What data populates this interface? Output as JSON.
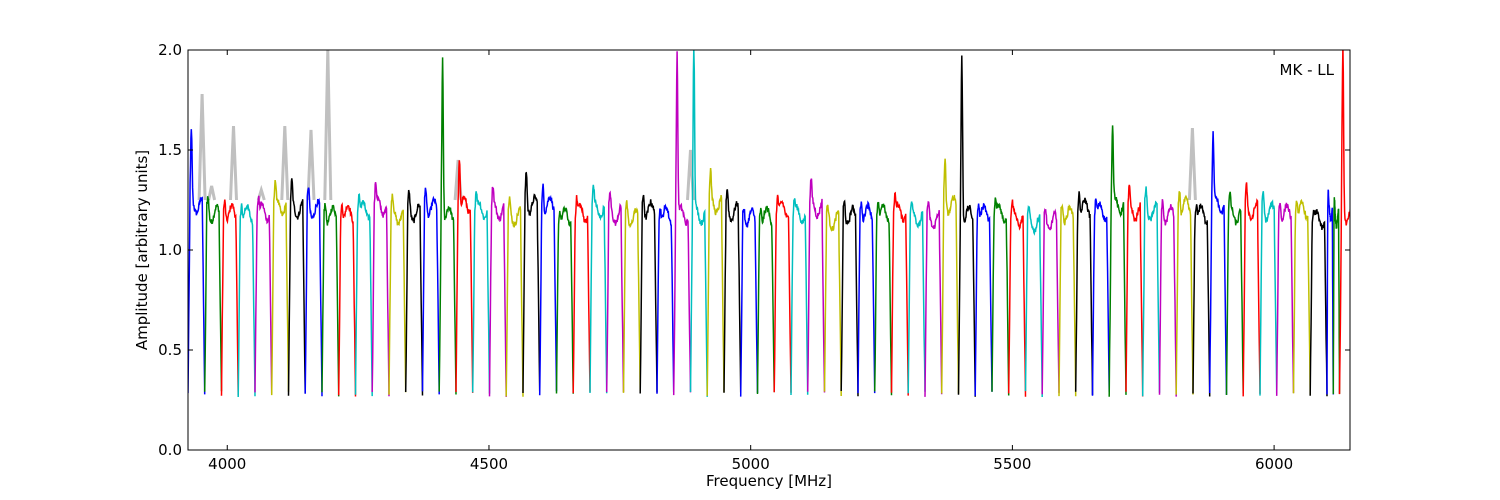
{
  "chart_data": {
    "type": "line",
    "title": "",
    "xlabel": "Frequency [MHz]",
    "ylabel": "Amplitude [arbitrary units]",
    "xlim": [
      3925,
      6145
    ],
    "ylim": [
      0.0,
      2.0
    ],
    "x_ticks": [
      4000,
      4500,
      5000,
      5500,
      6000
    ],
    "y_ticks": [
      0.0,
      0.5,
      1.0,
      1.5,
      2.0
    ],
    "x_tick_labels": [
      "4000",
      "4500",
      "5000",
      "5500",
      "6000"
    ],
    "y_tick_labels": [
      "0.0",
      "0.5",
      "1.0",
      "1.5",
      "2.0"
    ],
    "grid": false,
    "annotation": "MK - LL",
    "channel_width_mhz": 32,
    "band_start_mhz": 3925,
    "color_cycle": [
      "#0000ff",
      "#008000",
      "#ff0000",
      "#00bfbf",
      "#bf00bf",
      "#bfbf00",
      "#000000"
    ],
    "background_trace_color": "#c0c0c0",
    "channels": [
      {
        "start": 3925,
        "peak": 1.56,
        "color": "#0000ff"
      },
      {
        "start": 3957,
        "peak": 1.26,
        "color": "#008000"
      },
      {
        "start": 3989,
        "peak": 1.27,
        "color": "#ff0000"
      },
      {
        "start": 4021,
        "peak": 1.26,
        "color": "#00bfbf"
      },
      {
        "start": 4053,
        "peak": 1.28,
        "color": "#bf00bf"
      },
      {
        "start": 4085,
        "peak": 1.33,
        "color": "#bfbf00"
      },
      {
        "start": 4117,
        "peak": 1.31,
        "color": "#000000"
      },
      {
        "start": 4149,
        "peak": 1.3,
        "color": "#0000ff"
      },
      {
        "start": 4181,
        "peak": 1.25,
        "color": "#008000"
      },
      {
        "start": 4213,
        "peak": 1.27,
        "color": "#ff0000"
      },
      {
        "start": 4245,
        "peak": 1.3,
        "color": "#00bfbf"
      },
      {
        "start": 4277,
        "peak": 1.33,
        "color": "#bf00bf"
      },
      {
        "start": 4309,
        "peak": 1.24,
        "color": "#bfbf00"
      },
      {
        "start": 4341,
        "peak": 1.27,
        "color": "#000000"
      },
      {
        "start": 4373,
        "peak": 1.32,
        "color": "#0000ff"
      },
      {
        "start": 4405,
        "peak": 2.0,
        "color": "#008000"
      },
      {
        "start": 4437,
        "peak": 1.48,
        "color": "#ff0000"
      },
      {
        "start": 4469,
        "peak": 1.3,
        "color": "#00bfbf"
      },
      {
        "start": 4501,
        "peak": 1.29,
        "color": "#bf00bf"
      },
      {
        "start": 4533,
        "peak": 1.23,
        "color": "#bfbf00"
      },
      {
        "start": 4565,
        "peak": 1.39,
        "color": "#000000"
      },
      {
        "start": 4597,
        "peak": 1.35,
        "color": "#0000ff"
      },
      {
        "start": 4629,
        "peak": 1.23,
        "color": "#008000"
      },
      {
        "start": 4661,
        "peak": 1.27,
        "color": "#ff0000"
      },
      {
        "start": 4693,
        "peak": 1.3,
        "color": "#00bfbf"
      },
      {
        "start": 4725,
        "peak": 1.25,
        "color": "#bf00bf"
      },
      {
        "start": 4757,
        "peak": 1.22,
        "color": "#bfbf00"
      },
      {
        "start": 4789,
        "peak": 1.3,
        "color": "#000000"
      },
      {
        "start": 4821,
        "peak": 1.25,
        "color": "#0000ff"
      },
      {
        "start": 4853,
        "peak": 2.0,
        "color": "#bf00bf"
      },
      {
        "start": 4885,
        "peak": 2.0,
        "color": "#00bfbf"
      },
      {
        "start": 4917,
        "peak": 1.37,
        "color": "#bfbf00"
      },
      {
        "start": 4949,
        "peak": 1.28,
        "color": "#000000"
      },
      {
        "start": 4981,
        "peak": 1.22,
        "color": "#0000ff"
      },
      {
        "start": 5013,
        "peak": 1.24,
        "color": "#008000"
      },
      {
        "start": 5045,
        "peak": 1.3,
        "color": "#ff0000"
      },
      {
        "start": 5077,
        "peak": 1.25,
        "color": "#00bfbf"
      },
      {
        "start": 5109,
        "peak": 1.32,
        "color": "#bf00bf"
      },
      {
        "start": 5141,
        "peak": 1.19,
        "color": "#bfbf00"
      },
      {
        "start": 5173,
        "peak": 1.24,
        "color": "#000000"
      },
      {
        "start": 5205,
        "peak": 1.27,
        "color": "#0000ff"
      },
      {
        "start": 5237,
        "peak": 1.27,
        "color": "#008000"
      },
      {
        "start": 5269,
        "peak": 1.28,
        "color": "#ff0000"
      },
      {
        "start": 5301,
        "peak": 1.22,
        "color": "#00bfbf"
      },
      {
        "start": 5333,
        "peak": 1.2,
        "color": "#bf00bf"
      },
      {
        "start": 5365,
        "peak": 1.45,
        "color": "#bfbf00"
      },
      {
        "start": 5397,
        "peak": 2.0,
        "color": "#000000"
      },
      {
        "start": 5429,
        "peak": 1.27,
        "color": "#0000ff"
      },
      {
        "start": 5461,
        "peak": 1.27,
        "color": "#008000"
      },
      {
        "start": 5493,
        "peak": 1.22,
        "color": "#ff0000"
      },
      {
        "start": 5525,
        "peak": 1.17,
        "color": "#00bfbf"
      },
      {
        "start": 5557,
        "peak": 1.18,
        "color": "#bf00bf"
      },
      {
        "start": 5589,
        "peak": 1.25,
        "color": "#bfbf00"
      },
      {
        "start": 5621,
        "peak": 1.32,
        "color": "#000000"
      },
      {
        "start": 5653,
        "peak": 1.28,
        "color": "#0000ff"
      },
      {
        "start": 5685,
        "peak": 1.62,
        "color": "#008000"
      },
      {
        "start": 5717,
        "peak": 1.28,
        "color": "#ff0000"
      },
      {
        "start": 5749,
        "peak": 1.28,
        "color": "#00bfbf"
      },
      {
        "start": 5781,
        "peak": 1.25,
        "color": "#bf00bf"
      },
      {
        "start": 5813,
        "peak": 1.33,
        "color": "#bfbf00"
      },
      {
        "start": 5845,
        "peak": 1.26,
        "color": "#000000"
      },
      {
        "start": 5877,
        "peak": 1.58,
        "color": "#0000ff"
      },
      {
        "start": 5909,
        "peak": 1.25,
        "color": "#008000"
      },
      {
        "start": 5941,
        "peak": 1.29,
        "color": "#ff0000"
      },
      {
        "start": 5973,
        "peak": 1.28,
        "color": "#00bfbf"
      },
      {
        "start": 6005,
        "peak": 1.27,
        "color": "#bf00bf"
      },
      {
        "start": 6037,
        "peak": 1.29,
        "color": "#bfbf00"
      },
      {
        "start": 6069,
        "peak": 1.2,
        "color": "#000000"
      },
      {
        "start": 6101,
        "peak": 1.27,
        "color": "#0000ff"
      },
      {
        "start": 6113,
        "peak": 1.22,
        "color": "#008000"
      },
      {
        "start": 6125,
        "peak": 2.0,
        "color": "#ff0000"
      }
    ],
    "background_spikes": [
      {
        "x": 3952,
        "y": 1.78
      },
      {
        "x": 3970,
        "y": 1.32
      },
      {
        "x": 4012,
        "y": 1.62
      },
      {
        "x": 4065,
        "y": 1.3
      },
      {
        "x": 4110,
        "y": 1.62
      },
      {
        "x": 4160,
        "y": 1.6
      },
      {
        "x": 4192,
        "y": 2.0
      },
      {
        "x": 4441,
        "y": 1.45
      },
      {
        "x": 4885,
        "y": 1.5
      },
      {
        "x": 5844,
        "y": 1.61
      }
    ]
  }
}
